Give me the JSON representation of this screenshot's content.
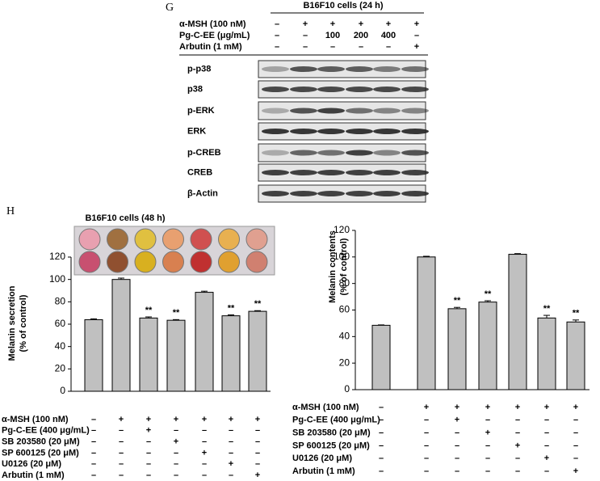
{
  "panel_labels": [
    "G",
    "H"
  ],
  "blot": {
    "title": "B16F10 cells (24 h)",
    "treatments": [
      {
        "label": "α-MSH (100 nM)",
        "signs": [
          "–",
          "+",
          "+",
          "+",
          "+",
          "+"
        ]
      },
      {
        "label": "Pg-C-EE (μg/mL)",
        "signs": [
          "–",
          "–",
          "100",
          "200",
          "400",
          "–"
        ]
      },
      {
        "label": "Arbutin (1 mM)",
        "signs": [
          "–",
          "–",
          "–",
          "–",
          "–",
          "+"
        ]
      }
    ],
    "rows": [
      "p-p38",
      "p38",
      "p-ERK",
      "ERK",
      "p-CREB",
      "CREB",
      "β-Actin"
    ]
  },
  "chart_data": [
    {
      "type": "bar",
      "title": "B16F10 cells (48 h)",
      "y_label": "Melanin secretion\n(% of control)",
      "categories": [
        null,
        null,
        null,
        null,
        null,
        null,
        null
      ],
      "values": [
        64,
        100,
        65.5,
        63.5,
        88.5,
        67.5,
        71.5
      ],
      "errors": [
        0.8,
        1.2,
        1,
        0.6,
        1,
        0.8,
        0.6
      ],
      "significance": [
        null,
        null,
        "**",
        "**",
        null,
        "**",
        "**"
      ],
      "color": "#c0c0c0",
      "ylim": [
        0,
        120
      ],
      "yticks": [
        0,
        20,
        40,
        60,
        80,
        100,
        120
      ],
      "grid": false,
      "treatments": [
        {
          "label": "α-MSH (100 nM)",
          "signs": [
            "–",
            "+",
            "+",
            "+",
            "+",
            "+",
            "+"
          ]
        },
        {
          "label": "Pg-C-EE (400 μg/mL)",
          "signs": [
            "–",
            "–",
            "+",
            "–",
            "–",
            "–",
            "–"
          ]
        },
        {
          "label": "SB 203580 (20 μM)",
          "signs": [
            "–",
            "–",
            "–",
            "+",
            "–",
            "–",
            "–"
          ]
        },
        {
          "label": "SP 600125 (20 μM)",
          "signs": [
            "–",
            "–",
            "–",
            "–",
            "+",
            "–",
            "–"
          ]
        },
        {
          "label": "U0126 (20 μM)",
          "signs": [
            "–",
            "–",
            "–",
            "–",
            "–",
            "+",
            "–"
          ]
        },
        {
          "label": "Arbutin (1 mM)",
          "signs": [
            "–",
            "–",
            "–",
            "–",
            "–",
            "–",
            "+"
          ]
        }
      ]
    },
    {
      "type": "bar",
      "y_label": "Melanin contents\n(% of control)",
      "categories": [
        null,
        null,
        null,
        null,
        null,
        null,
        null
      ],
      "values": [
        48.5,
        100,
        61,
        66,
        102,
        54,
        51
      ],
      "errors": [
        0.3,
        0.5,
        1,
        1,
        0.5,
        2,
        1.5
      ],
      "significance": [
        null,
        null,
        "**",
        "**",
        null,
        "**",
        "**"
      ],
      "color": "#c0c0c0",
      "ylim": [
        0,
        120
      ],
      "yticks": [
        0,
        20,
        40,
        60,
        80,
        100,
        120
      ],
      "grid": false,
      "treatments": [
        {
          "label": "α-MSH (100 nM)",
          "signs": [
            "–",
            "+",
            "+",
            "+",
            "+",
            "+",
            "+"
          ]
        },
        {
          "label": "Pg-C-EE (400 μg/mL)",
          "signs": [
            "–",
            "–",
            "+",
            "–",
            "–",
            "–",
            "–"
          ]
        },
        {
          "label": "SB 203580 (20 μM)",
          "signs": [
            "–",
            "–",
            "–",
            "+",
            "–",
            "–",
            "–"
          ]
        },
        {
          "label": "SP 600125 (20 μM)",
          "signs": [
            "–",
            "–",
            "–",
            "–",
            "+",
            "–",
            "–"
          ]
        },
        {
          "label": "U0126 (20 μM)",
          "signs": [
            "–",
            "–",
            "–",
            "–",
            "–",
            "+",
            "–"
          ]
        },
        {
          "label": "Arbutin (1 mM)",
          "signs": [
            "–",
            "–",
            "–",
            "–",
            "–",
            "–",
            "+"
          ]
        }
      ]
    }
  ]
}
